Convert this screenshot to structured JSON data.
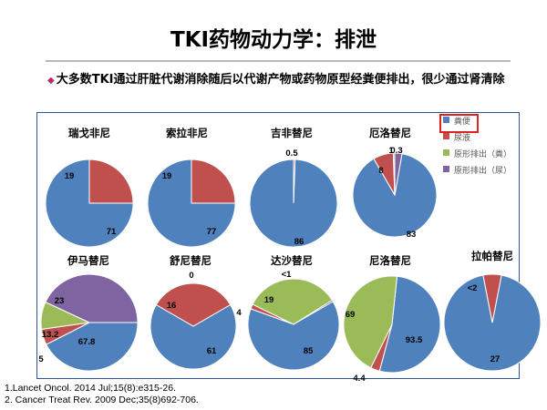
{
  "slide": {
    "title": "TKI药物动力学：排泄",
    "bullet": "大多数TKI通过肝脏代谢消除随后以代谢产物或药物原型经粪便排出，很少通过肾清除",
    "references": [
      "1.Lancet Oncol. 2014 Jul;15(8):e315-26.",
      "2. Cancer Treat Rev. 2009 Dec;35(8)692-706."
    ],
    "colors": {
      "title_rule": "#b7b7b7",
      "panel_border": "#2f5597",
      "bullet_marker": "#c0286a",
      "legend_highlight": "#dd2222"
    }
  },
  "legend": [
    {
      "label": "粪便",
      "color": "#4f81bd"
    },
    {
      "label": "尿液",
      "color": "#c0504d"
    },
    {
      "label": "原形排出（粪）",
      "color": "#9bbb59"
    },
    {
      "label": "原形排出（尿）",
      "color": "#8064a2"
    }
  ],
  "chart_data": [
    {
      "type": "pie",
      "title": "瑞戈非尼",
      "slices": [
        {
          "series": "粪便",
          "value": 71,
          "label": "71"
        },
        {
          "series": "尿液",
          "value": 19,
          "label": "19"
        }
      ]
    },
    {
      "type": "pie",
      "title": "索拉非尼",
      "slices": [
        {
          "series": "粪便",
          "value": 77,
          "label": "77"
        },
        {
          "series": "尿液",
          "value": 19,
          "label": "19"
        }
      ]
    },
    {
      "type": "pie",
      "title": "吉非替尼",
      "slices": [
        {
          "series": "粪便",
          "value": 86,
          "label": "86"
        },
        {
          "series": "尿液",
          "value": 0.5,
          "label": "0.5"
        }
      ]
    },
    {
      "type": "pie",
      "title": "厄洛替尼",
      "slices": [
        {
          "series": "粪便",
          "value": 83,
          "label": "83"
        },
        {
          "series": "尿液",
          "value": 8,
          "label": "8"
        },
        {
          "series": "原形排出（粪）",
          "value": 1,
          "label": "1"
        },
        {
          "series": "原形排出（尿）",
          "value": 0.3,
          "label": "0.3"
        }
      ]
    },
    {
      "type": "pie",
      "title": "伊马替尼",
      "slices": [
        {
          "series": "粪便",
          "value": 67.8,
          "label": "67.8"
        },
        {
          "series": "尿液",
          "value": 5,
          "label": "5"
        },
        {
          "series": "原形排出（粪）",
          "value": 13.2,
          "label": "13.2"
        },
        {
          "series": "原形排出（尿）",
          "value": 23,
          "label": "23"
        }
      ]
    },
    {
      "type": "pie",
      "title": "舒尼替尼",
      "slices": [
        {
          "series": "粪便",
          "value": 61,
          "label": "61"
        },
        {
          "series": "尿液",
          "value": 16,
          "label": "16"
        },
        {
          "series": "原形排出（粪）",
          "value": 0,
          "label": "0"
        }
      ]
    },
    {
      "type": "pie",
      "title": "达沙替尼",
      "slices": [
        {
          "series": "粪便",
          "value": 85,
          "label": "85"
        },
        {
          "series": "尿液",
          "value": 4,
          "label": "4"
        },
        {
          "series": "原形排出（粪）",
          "value": 19,
          "label": "19"
        },
        {
          "series": "原形排出（尿）",
          "value": 0.5,
          "label": "<1"
        }
      ]
    },
    {
      "type": "pie",
      "title": "尼洛替尼",
      "slices": [
        {
          "series": "粪便",
          "value": 93.5,
          "label": "93.5"
        },
        {
          "series": "尿液",
          "value": 4.4,
          "label": "4.4"
        },
        {
          "series": "原形排出（粪）",
          "value": 69,
          "label": "69"
        }
      ]
    },
    {
      "type": "pie",
      "title": "拉帕替尼",
      "slices": [
        {
          "series": "粪便",
          "value": 27,
          "label": "27"
        },
        {
          "series": "尿液",
          "value": 2,
          "label": "<2"
        }
      ]
    }
  ]
}
